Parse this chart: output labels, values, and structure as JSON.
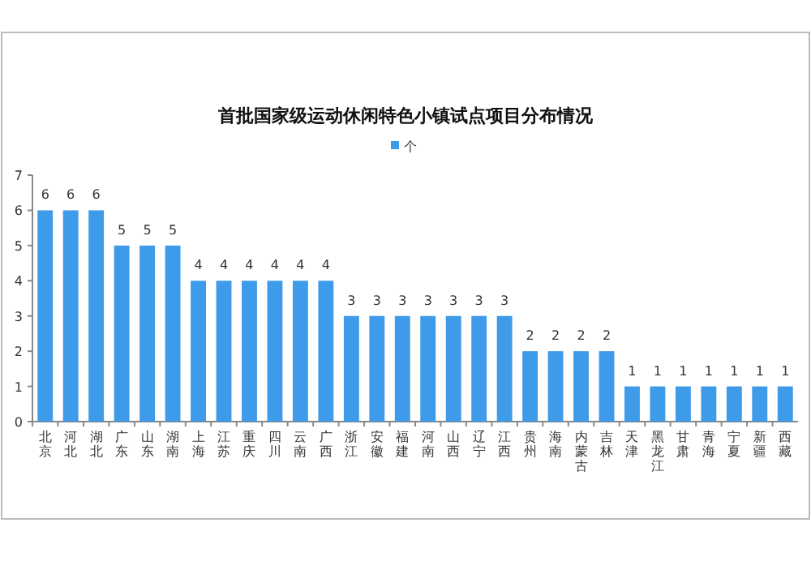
{
  "chart_data": {
    "type": "bar",
    "title": "首批国家级运动休闲特色小镇试点项目分布情况",
    "categories": [
      "北京",
      "河北",
      "湖北",
      "广东",
      "山东",
      "湖南",
      "上海",
      "江苏",
      "重庆",
      "四川",
      "云南",
      "广西",
      "浙江",
      "安徽",
      "福建",
      "河南",
      "山西",
      "辽宁",
      "江西",
      "贵州",
      "海南",
      "内蒙古",
      "吉林",
      "天津",
      "黑龙江",
      "甘肃",
      "青海",
      "宁夏",
      "新疆",
      "西藏"
    ],
    "series": [
      {
        "name": "个",
        "color": "#3d9be9",
        "values": [
          6,
          6,
          6,
          5,
          5,
          5,
          4,
          4,
          4,
          4,
          4,
          4,
          3,
          3,
          3,
          3,
          3,
          3,
          3,
          2,
          2,
          2,
          2,
          1,
          1,
          1,
          1,
          1,
          1,
          1
        ]
      }
    ],
    "ylim": [
      0,
      7
    ],
    "yticks": [
      0,
      1,
      2,
      3,
      4,
      5,
      6,
      7
    ],
    "grid": false,
    "legend": "top",
    "data_labels": true
  }
}
